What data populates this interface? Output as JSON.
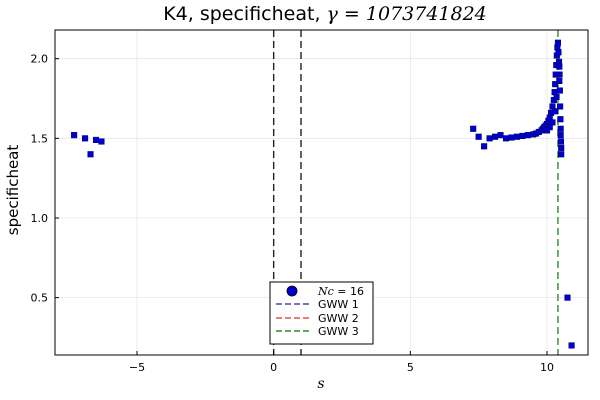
{
  "chart_data": {
    "type": "scatter",
    "title": {
      "prefix": "K4, specificheat, ",
      "symbol": "γ",
      "suffix": " = 1073741824"
    },
    "xlabel": "s",
    "ylabel": "specificheat",
    "xlim": [
      -8.0,
      11.5
    ],
    "ylim": [
      0.14,
      2.18
    ],
    "x_ticks": [
      -5,
      0,
      5,
      10
    ],
    "x_tick_labels": [
      "−5",
      "0",
      "5",
      "10"
    ],
    "y_ticks": [
      0.5,
      1.0,
      1.5,
      2.0
    ],
    "y_tick_labels": [
      "0.5",
      "1.0",
      "1.5",
      "2.0"
    ],
    "grid": true,
    "legend_position": "bottom-center",
    "colors": {
      "points": "#0000cc",
      "gww1": "#4a4aa8",
      "gww2": "#e6534b",
      "gww3": "#2e8b2e",
      "vlines": "#222222"
    },
    "vertical_lines": [
      {
        "x": 0.0
      },
      {
        "x": 1.0
      },
      {
        "x": 10.4,
        "series": "GWW 3"
      }
    ],
    "legend": {
      "scatter_label": {
        "symbol": "Nc",
        "suffix": " = 16"
      },
      "lines": [
        "GWW 1",
        "GWW 2",
        "GWW 3"
      ]
    },
    "series": [
      {
        "name": "Nc = 16",
        "points": [
          [
            -7.3,
            1.52
          ],
          [
            -6.9,
            1.5
          ],
          [
            -6.7,
            1.4
          ],
          [
            -6.5,
            1.49
          ],
          [
            -6.3,
            1.48
          ],
          [
            7.3,
            1.56
          ],
          [
            7.5,
            1.51
          ],
          [
            7.7,
            1.45
          ],
          [
            7.9,
            1.5
          ],
          [
            8.1,
            1.51
          ],
          [
            8.3,
            1.52
          ],
          [
            8.5,
            1.5
          ],
          [
            8.7,
            1.505
          ],
          [
            8.9,
            1.51
          ],
          [
            9.1,
            1.515
          ],
          [
            9.3,
            1.52
          ],
          [
            9.5,
            1.525
          ],
          [
            9.6,
            1.53
          ],
          [
            9.7,
            1.54
          ],
          [
            9.8,
            1.55
          ],
          [
            9.85,
            1.56
          ],
          [
            9.9,
            1.57
          ],
          [
            9.95,
            1.58
          ],
          [
            10.0,
            1.59
          ],
          [
            10.05,
            1.61
          ],
          [
            10.1,
            1.63
          ],
          [
            10.15,
            1.66
          ],
          [
            10.2,
            1.7
          ],
          [
            10.25,
            1.74
          ],
          [
            10.28,
            1.79
          ],
          [
            10.3,
            1.84
          ],
          [
            10.32,
            1.9
          ],
          [
            10.34,
            1.96
          ],
          [
            10.36,
            2.02
          ],
          [
            10.38,
            2.07
          ],
          [
            10.4,
            2.1
          ],
          [
            10.42,
            2.04
          ],
          [
            10.44,
            1.98
          ],
          [
            10.46,
            1.9
          ],
          [
            10.47,
            1.8
          ],
          [
            10.48,
            1.7
          ],
          [
            10.49,
            1.62
          ],
          [
            10.5,
            1.56
          ],
          [
            10.5,
            1.52
          ],
          [
            10.51,
            1.48
          ],
          [
            10.52,
            1.44
          ],
          [
            10.52,
            1.4
          ],
          [
            10.2,
            1.6
          ],
          [
            10.1,
            1.57
          ],
          [
            10.0,
            1.55
          ],
          [
            10.3,
            1.67
          ],
          [
            10.35,
            1.76
          ],
          [
            10.45,
            1.95
          ],
          [
            10.45,
            1.86
          ],
          [
            10.75,
            0.5
          ],
          [
            10.9,
            0.2
          ]
        ]
      }
    ]
  }
}
